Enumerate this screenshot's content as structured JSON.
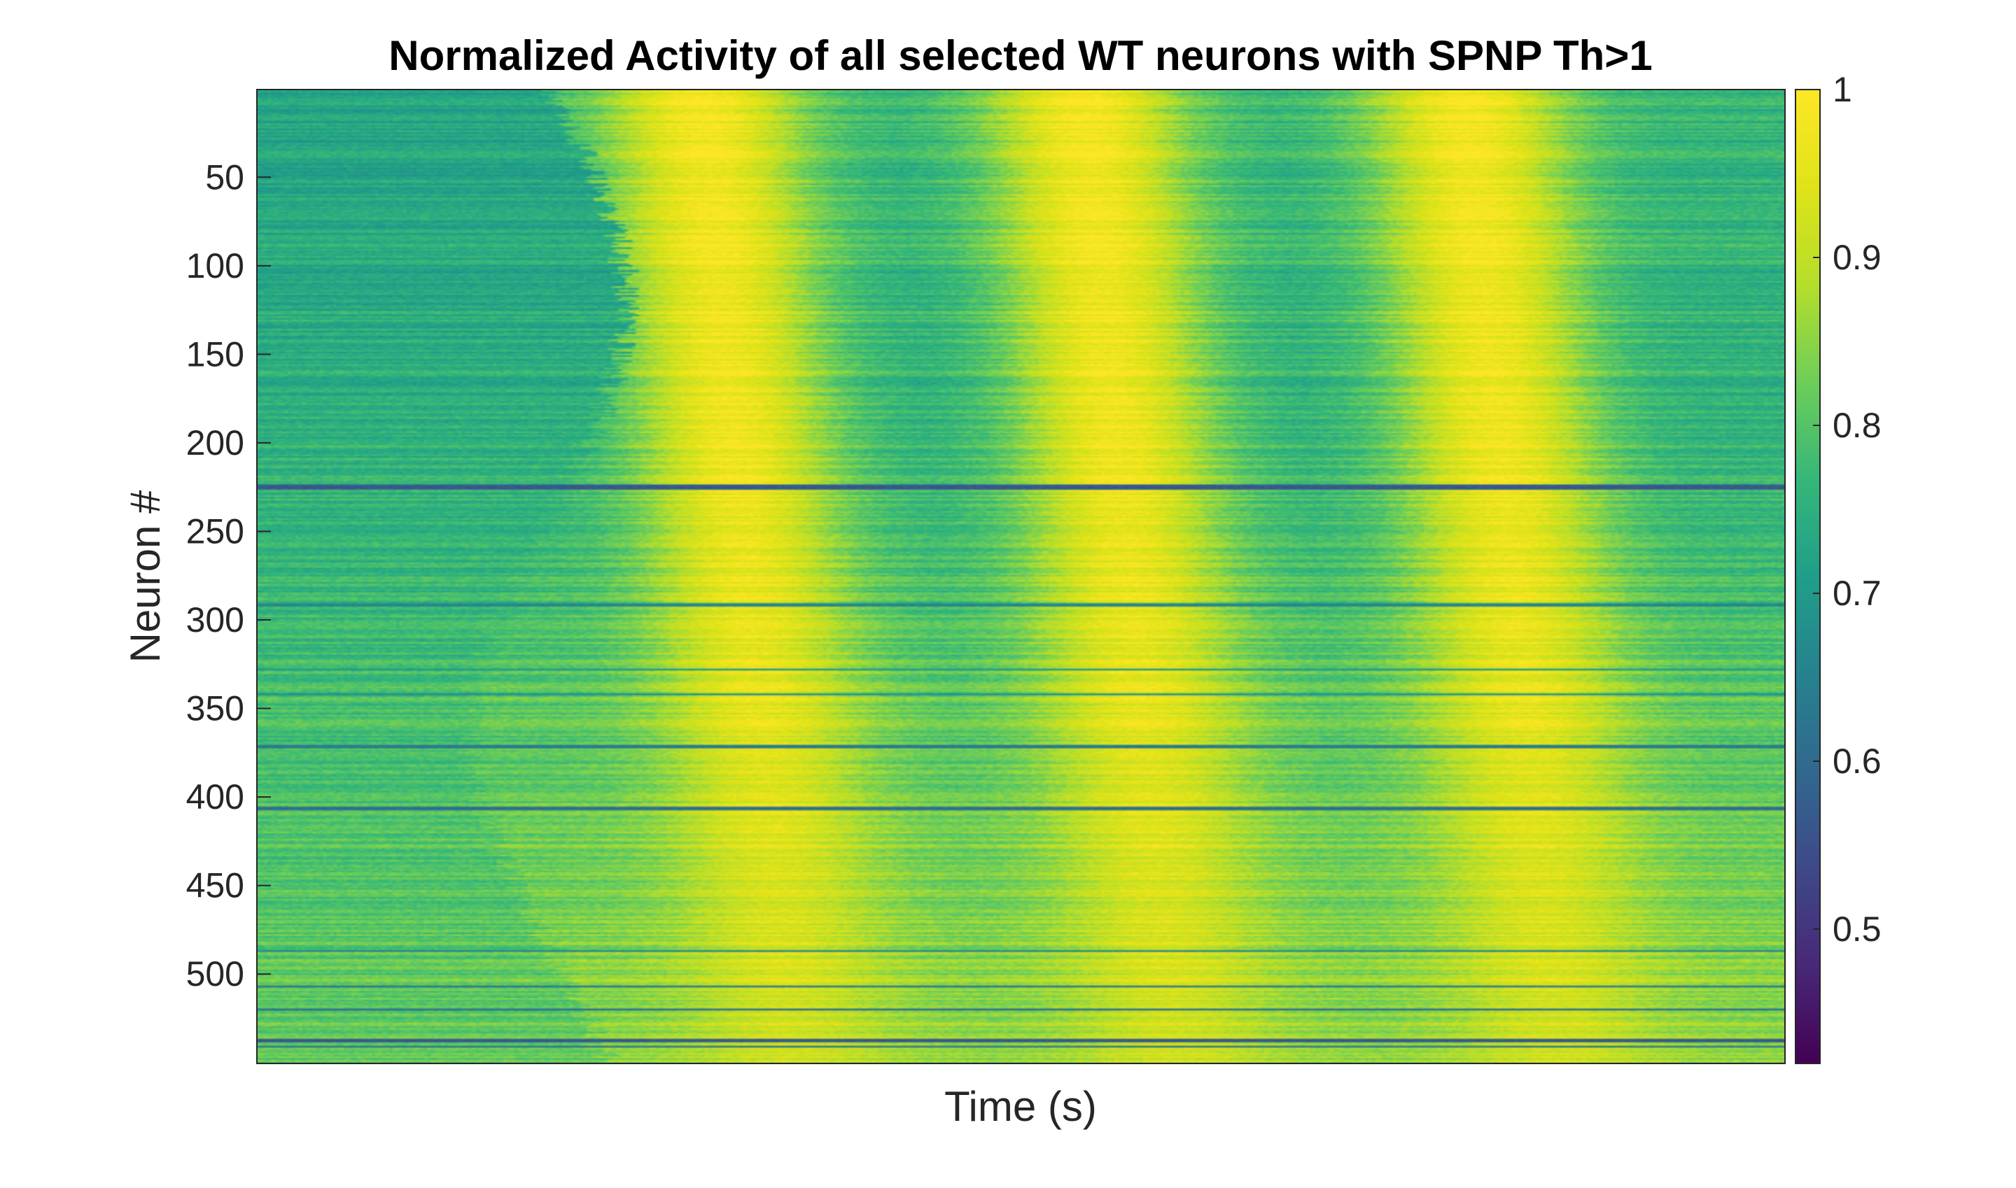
{
  "chart_data": {
    "type": "heatmap",
    "title": "Normalized Activity of all selected WT neurons with SPNP Th>1",
    "xlabel": "Time (s)",
    "ylabel": "Neuron #",
    "colormap": "viridis",
    "n_neurons": 550,
    "ylim": [
      1,
      550
    ],
    "y_ticks": [
      50,
      100,
      150,
      200,
      250,
      300,
      350,
      400,
      450,
      500
    ],
    "y_tick_labels": [
      "50",
      "100",
      "150",
      "200",
      "250",
      "300",
      "350",
      "400",
      "450",
      "500"
    ],
    "x_tick_labels": [],
    "colorbar": {
      "min": 0.42,
      "max": 1,
      "ticks": [
        0.5,
        0.6,
        0.7,
        0.8,
        0.9,
        1
      ],
      "tick_labels": [
        "0.5",
        "0.6",
        "0.7",
        "0.8",
        "0.9",
        "1"
      ]
    },
    "grid": false,
    "activity_pattern": "Three broad bands of high normalized activity (near 1) sweeping across time, separated by lower activity (about 0.75); upper neurons peak in distinct waves, lower neurons show sustained high activity after onset; a few neurons (around #225, #290, #370, #405, #540) show consistently low activity (about 0.55-0.65)."
  }
}
